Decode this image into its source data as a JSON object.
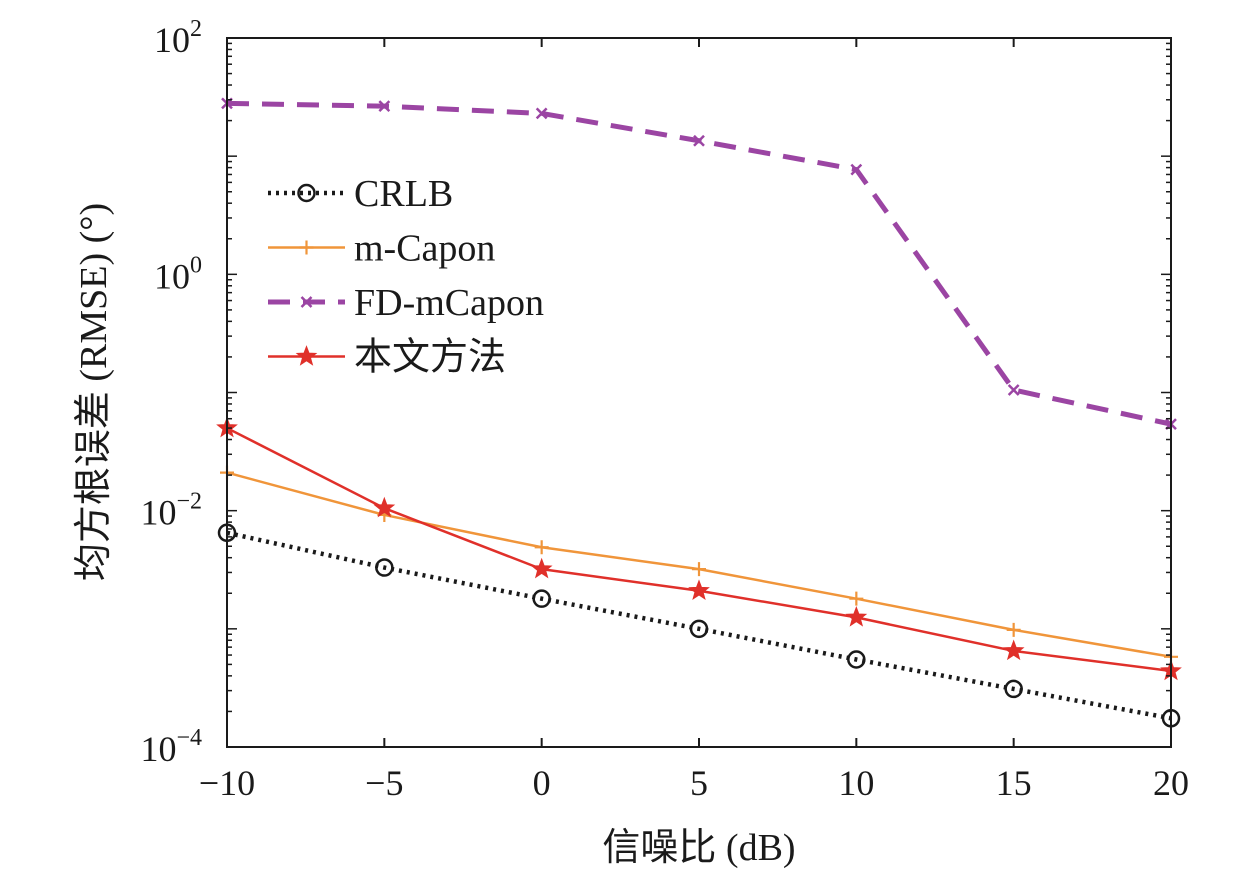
{
  "chart_data": {
    "type": "line",
    "title": "",
    "xlabel": "信噪比 (dB)",
    "ylabel": "均方根误差 (RMSE) (°)",
    "x": [
      -10,
      -5,
      0,
      5,
      10,
      15,
      20
    ],
    "xlim": [
      -10,
      20
    ],
    "xticks": [
      "−10",
      "−5",
      "0",
      "5",
      "10",
      "15",
      "20"
    ],
    "ylim": [
      0.0001,
      100
    ],
    "yscale": "log",
    "yticks": [
      {
        "base": "10",
        "exp": "−4",
        "value": 0.0001
      },
      {
        "base": "10",
        "exp": "−2",
        "value": 0.01
      },
      {
        "base": "10",
        "exp": "0",
        "value": 1
      },
      {
        "base": "10",
        "exp": "2",
        "value": 100
      }
    ],
    "grid": false,
    "legend_position": "upper-left",
    "series": [
      {
        "name": "CRLB",
        "color": "#1a1a1a",
        "style": "dotted",
        "marker": "circle",
        "values": [
          0.0065,
          0.0033,
          0.0018,
          0.001,
          0.00055,
          0.00031,
          0.000175
        ]
      },
      {
        "name": "m-Capon",
        "color": "#f0953a",
        "style": "solid",
        "marker": "plus",
        "values": [
          0.021,
          0.0092,
          0.0049,
          0.0032,
          0.0018,
          0.00098,
          0.00058
        ]
      },
      {
        "name": "FD-mCapon",
        "color": "#9b45a3",
        "style": "dashed",
        "marker": "x",
        "values": [
          28,
          26.5,
          23,
          13.5,
          7.7,
          0.105,
          0.054
        ]
      },
      {
        "name": "本文方法",
        "color": "#e0302a",
        "style": "solid",
        "marker": "star",
        "values": [
          0.05,
          0.0105,
          0.0032,
          0.0021,
          0.00125,
          0.00065,
          0.00044
        ]
      }
    ]
  }
}
